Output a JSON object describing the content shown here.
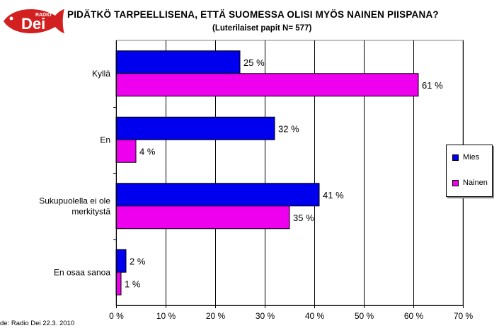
{
  "logo": {
    "small_text": "RADIO",
    "big_text": "Dei",
    "color": "#d22020"
  },
  "source": "de: Radio Dei 22.3. 2010",
  "colors": {
    "mies": "#0000ee",
    "nainen": "#ee00ee",
    "grid": "#000000",
    "plot_bg": "#ffffff"
  },
  "chart_data": {
    "type": "bar",
    "orientation": "horizontal",
    "title": "PIDÄTKÖ TARPEELLISENA, ETTÄ SUOMESSA OLISI MYÖS NAINEN PIISPANA?",
    "subtitle": "(Luterilaiset papit N= 577)",
    "categories": [
      "Kyllä",
      "En",
      "Sukupuolella ei ole merkitystä",
      "En osaa sanoa"
    ],
    "category_lines": [
      [
        "Kyllä"
      ],
      [
        "En"
      ],
      [
        "Sukupuolella ei ole",
        "merkitystä"
      ],
      [
        "En osaa sanoa"
      ]
    ],
    "series": [
      {
        "name": "Mies",
        "values": [
          25,
          32,
          41,
          2
        ],
        "labels": [
          "25 %",
          "32 %",
          "41 %",
          "2 %"
        ]
      },
      {
        "name": "Nainen",
        "values": [
          61,
          4,
          35,
          1
        ],
        "labels": [
          "61 %",
          "4 %",
          "35 %",
          "1 %"
        ]
      }
    ],
    "xlim": [
      0,
      70
    ],
    "xticks": [
      0,
      10,
      20,
      30,
      40,
      50,
      60,
      70
    ],
    "xtick_labels": [
      "0 %",
      "10 %",
      "20 %",
      "30 %",
      "40 %",
      "50 %",
      "60 %",
      "70 %"
    ],
    "grid": true,
    "legend_position": "right"
  }
}
